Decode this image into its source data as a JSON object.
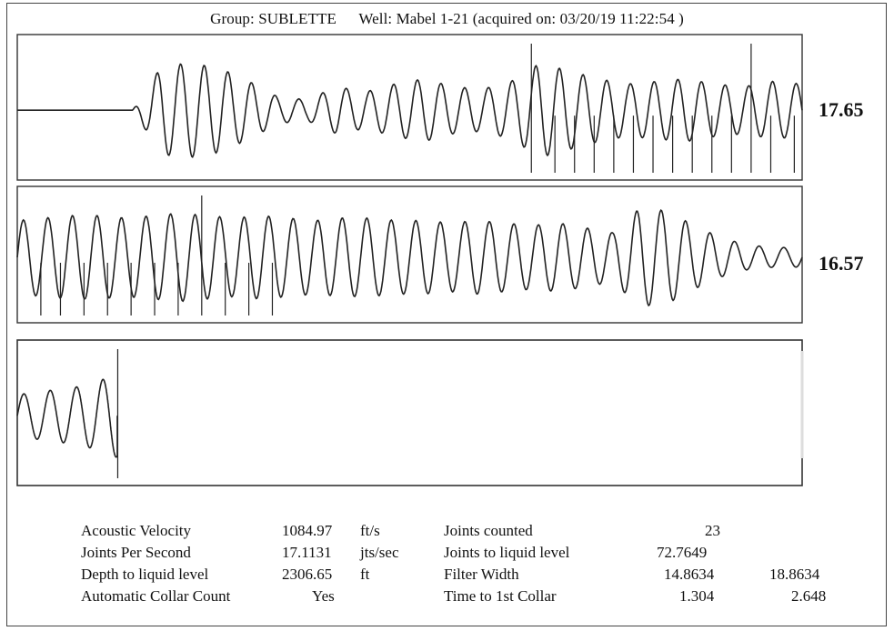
{
  "header": {
    "group": "Group: SUBLETTE",
    "well": "Well: Mabel 1-21 (acquired on: 03/20/19 11:22:54 )"
  },
  "panels": [
    {
      "label": "17.65"
    },
    {
      "label": "16.57"
    },
    {
      "label": ""
    }
  ],
  "info": {
    "left": [
      {
        "label": "Acoustic Velocity",
        "value": "1084.97",
        "unit": "ft/s"
      },
      {
        "label": "Joints Per Second",
        "value": "17.1131",
        "unit": "jts/sec"
      },
      {
        "label": "Depth to liquid level",
        "value": "2306.65",
        "unit": "ft"
      },
      {
        "label": "Automatic Collar Count",
        "value": "Yes",
        "unit": ""
      }
    ],
    "right": [
      {
        "label": "Joints counted",
        "value": "23",
        "value2": ""
      },
      {
        "label": "Joints to liquid level",
        "value": "72.7649",
        "value2": ""
      },
      {
        "label": "Filter Width",
        "value": "14.8634",
        "value2": "18.8634"
      },
      {
        "label": "Time to 1st Collar",
        "value": "1.304",
        "value2": "2.648"
      }
    ]
  },
  "chart_data": {
    "type": "line",
    "title": "Group: SUBLETTE Well: Mabel 1-21 (acquired on: 03/20/19 11:22:54 )",
    "series": [
      {
        "panel_value": 17.65,
        "flat_until": 0.11,
        "cycles": 29.5,
        "amplitude_envelope": [
          0.0,
          0.0,
          0.85,
          0.9,
          0.8,
          0.55,
          0.25,
          0.2,
          0.45,
          0.35,
          0.5,
          0.6,
          0.45,
          0.4,
          0.55,
          0.9,
          0.75,
          0.6,
          0.5,
          0.55,
          0.6,
          0.5,
          0.45,
          0.55,
          0.5
        ],
        "collar_marks": [
          0.655,
          0.685,
          0.71,
          0.735,
          0.76,
          0.785,
          0.81,
          0.835,
          0.86,
          0.885,
          0.91,
          0.935,
          0.96,
          0.99
        ],
        "tall_marks": [
          0.655,
          0.935,
          0.995
        ]
      },
      {
        "panel_value": 16.57,
        "flat_until": 0,
        "cycles": 32,
        "amplitude_envelope": [
          0.75,
          0.8,
          0.85,
          0.85,
          0.8,
          0.85,
          0.9,
          0.85,
          0.8,
          0.85,
          0.8,
          0.75,
          0.8,
          0.8,
          0.75,
          0.75,
          0.7,
          0.75,
          0.7,
          0.65,
          0.7,
          0.6,
          0.5,
          1.0,
          0.95,
          0.65,
          0.4,
          0.25,
          0.2,
          0.2
        ],
        "collar_marks": [
          0.03,
          0.055,
          0.085,
          0.115,
          0.145,
          0.175,
          0.205,
          0.235,
          0.265,
          0.295,
          0.325
        ],
        "tall_marks": [
          0.235
        ]
      },
      {
        "panel_value": null,
        "flat_until": 0,
        "cycles": 3.8,
        "amplitude_envelope": [
          0.4,
          0.45,
          0.5,
          0.55,
          0.65,
          0.8
        ],
        "collar_marks": [
          0.128
        ],
        "tall_marks": [
          0.128
        ]
      }
    ]
  }
}
